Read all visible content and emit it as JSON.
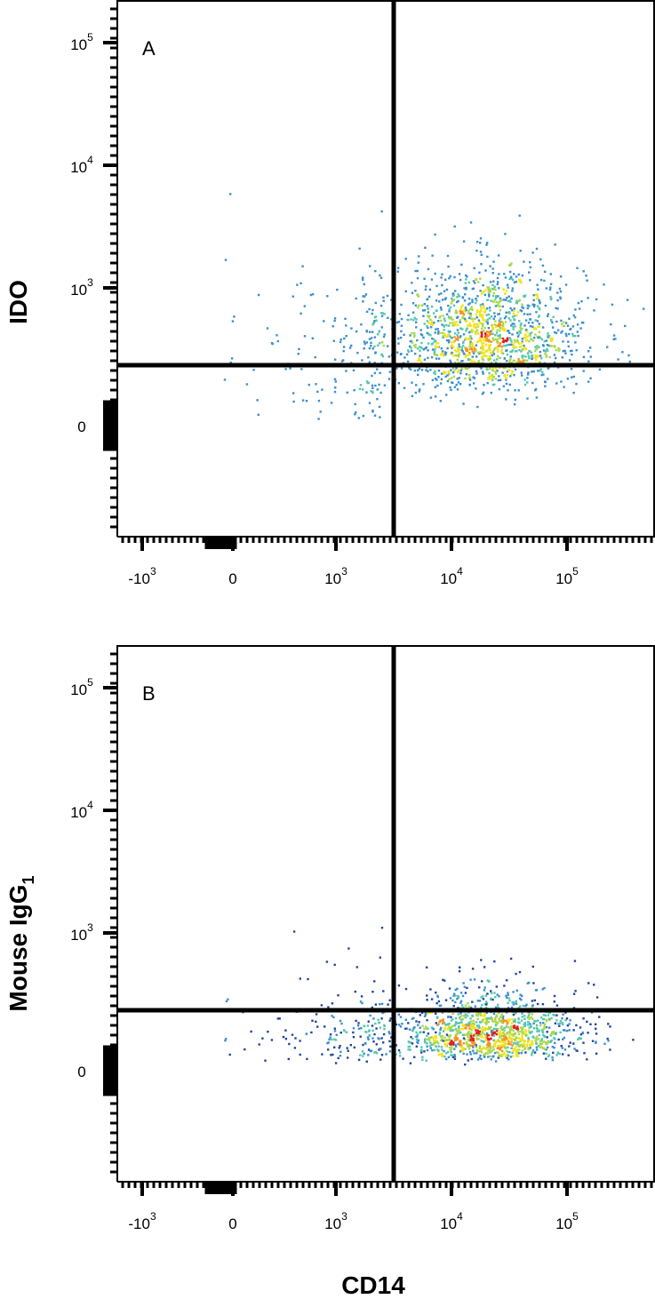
{
  "chart_data": [
    {
      "type": "scatter",
      "panel_label": "A",
      "xlabel": "",
      "ylabel": "IDO",
      "x_scale": "biexponential",
      "y_scale": "biexponential",
      "x_tick_labels": [
        {
          "base": "-10",
          "exp": "3",
          "value": -1000
        },
        {
          "base": "0",
          "exp": "",
          "value": 0
        },
        {
          "base": "10",
          "exp": "3",
          "value": 1000
        },
        {
          "base": "10",
          "exp": "4",
          "value": 10000
        },
        {
          "base": "10",
          "exp": "5",
          "value": 100000
        }
      ],
      "y_tick_labels": [
        {
          "base": "0",
          "exp": "",
          "value": 0
        },
        {
          "base": "10",
          "exp": "3",
          "value": 1000
        },
        {
          "base": "10",
          "exp": "4",
          "value": 10000
        },
        {
          "base": "10",
          "exp": "5",
          "value": 100000
        }
      ],
      "quadrant_gate": {
        "x": 2500,
        "y": 220
      },
      "populations": [
        {
          "x_median": 20000,
          "y_median": 400,
          "spread_x": 0.42,
          "spread_y": 0.3,
          "count": 1500
        },
        {
          "x_median": 200,
          "y_median": 250,
          "spread_x": 0.9,
          "spread_y": 0.45,
          "count": 160
        }
      ],
      "colors": [
        "#22479e",
        "#3b8fd0",
        "#55c6b0",
        "#a8d84a",
        "#f3e31c",
        "#f7901e",
        "#e11d25"
      ]
    },
    {
      "type": "scatter",
      "panel_label": "B",
      "xlabel": "CD14",
      "ylabel": "Mouse IgG",
      "ylabel_subscript": "1",
      "x_scale": "biexponential",
      "y_scale": "biexponential",
      "x_tick_labels": [
        {
          "base": "-10",
          "exp": "3",
          "value": -1000
        },
        {
          "base": "0",
          "exp": "",
          "value": 0
        },
        {
          "base": "10",
          "exp": "3",
          "value": 1000
        },
        {
          "base": "10",
          "exp": "4",
          "value": 10000
        },
        {
          "base": "10",
          "exp": "5",
          "value": 100000
        }
      ],
      "y_tick_labels": [
        {
          "base": "0",
          "exp": "",
          "value": 0
        },
        {
          "base": "10",
          "exp": "3",
          "value": 1000
        },
        {
          "base": "10",
          "exp": "4",
          "value": 10000
        },
        {
          "base": "10",
          "exp": "5",
          "value": 100000
        }
      ],
      "quadrant_gate": {
        "x": 2500,
        "y": 220
      },
      "populations": [
        {
          "x_median": 20000,
          "y_median": 100,
          "spread_x": 0.4,
          "spread_y": 0.28,
          "count": 1300
        },
        {
          "x_median": 200,
          "y_median": 100,
          "spread_x": 0.9,
          "spread_y": 0.35,
          "count": 140
        }
      ],
      "colors": [
        "#22479e",
        "#3b8fd0",
        "#55c6b0",
        "#a8d84a",
        "#f3e31c",
        "#f7901e",
        "#e11d25"
      ]
    }
  ]
}
